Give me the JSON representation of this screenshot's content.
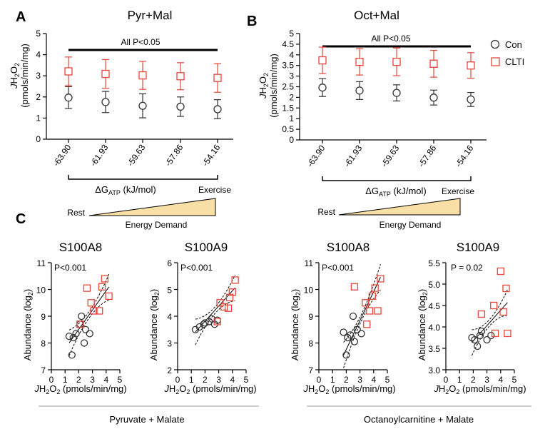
{
  "colors": {
    "con": "#333333",
    "clti": "#e8463b",
    "wedge": "#f8dfa5"
  },
  "panels": {
    "A": "A",
    "B": "B",
    "C": "C"
  },
  "top_charts": [
    {
      "title": "Pyr+Mal",
      "significance": "All P<0.05",
      "ylabel_main": "JH",
      "ylabel_sub": "2",
      "ylabel_o": "O",
      "ylabel_sub2": "2",
      "ylabel_units": "(pmols/min/mg)",
      "ylim": [
        0,
        5
      ],
      "yticks": [
        "0",
        "1",
        "2",
        "3",
        "4",
        "5"
      ],
      "categories": [
        "-63.90",
        "-61.93",
        "-59.63",
        "-57.86",
        "-54.16"
      ],
      "series": [
        {
          "name": "Con",
          "values": [
            1.97,
            1.76,
            1.58,
            1.54,
            1.42
          ],
          "errors": [
            0.52,
            0.5,
            0.57,
            0.46,
            0.45
          ]
        },
        {
          "name": "CLTI",
          "values": [
            3.21,
            3.09,
            3.02,
            2.98,
            2.9
          ],
          "errors": [
            0.68,
            0.68,
            0.66,
            0.64,
            0.68
          ]
        }
      ]
    },
    {
      "title": "Oct+Mal",
      "significance": "All P<0.05",
      "ylabel_main": "JH",
      "ylabel_sub": "2",
      "ylabel_o": "O",
      "ylabel_sub2": "2",
      "ylabel_units": "(pmols/min/mg)",
      "ylim": [
        0,
        5
      ],
      "yticks": [
        "0",
        "0.5",
        "1",
        "1.5",
        "2",
        "2.5",
        "3",
        "3.5",
        "4",
        "4.5",
        "5"
      ],
      "categories": [
        "-63.90",
        "-61.93",
        "-59.63",
        "-57.86",
        "-54.16"
      ],
      "series": [
        {
          "name": "Con",
          "values": [
            2.46,
            2.32,
            2.21,
            1.99,
            1.9
          ],
          "errors": [
            0.42,
            0.42,
            0.38,
            0.35,
            0.33
          ]
        },
        {
          "name": "CLTI",
          "values": [
            3.74,
            3.67,
            3.67,
            3.58,
            3.5
          ],
          "errors": [
            0.62,
            0.62,
            0.65,
            0.63,
            0.6
          ]
        }
      ]
    }
  ],
  "legend": {
    "items": [
      "Con",
      "CLTI"
    ]
  },
  "delta_g": {
    "label": "ΔG",
    "sub": "ATP",
    "units": " (kJ/mol)",
    "exercise": "Exercise",
    "rest": "Rest",
    "energy": "Energy Demand"
  },
  "scatter_charts": [
    {
      "title": "S100A8",
      "pvalue": "P<0.001",
      "ylim": [
        7,
        11
      ],
      "yticks": [
        "7",
        "8",
        "9",
        "10",
        "11"
      ],
      "xlim": [
        0,
        5
      ],
      "xticks": [
        "0",
        "1",
        "2",
        "3",
        "4",
        "5"
      ],
      "con": [
        [
          1.5,
          7.55
        ],
        [
          1.3,
          8.25
        ],
        [
          1.6,
          8.2
        ],
        [
          1.8,
          8.35
        ],
        [
          2.1,
          8.7
        ],
        [
          2.2,
          9.0
        ],
        [
          2.4,
          8.0
        ],
        [
          2.5,
          8.5
        ],
        [
          2.8,
          8.35
        ]
      ],
      "clti": [
        [
          2.1,
          8.7
        ],
        [
          2.6,
          10.05
        ],
        [
          2.9,
          9.5
        ],
        [
          3.1,
          9.2
        ],
        [
          3.5,
          9.2
        ],
        [
          3.7,
          10.1
        ],
        [
          3.9,
          10.4
        ],
        [
          4.2,
          9.75
        ]
      ],
      "fit": {
        "intercept": 7.07,
        "slope": 0.72
      }
    },
    {
      "title": "S100A9",
      "pvalue": "P<0.001",
      "ylim": [
        2,
        6
      ],
      "yticks": [
        "2",
        "3",
        "4",
        "5",
        "6"
      ],
      "xlim": [
        0,
        5
      ],
      "xticks": [
        "0",
        "1",
        "2",
        "3",
        "4",
        "5"
      ],
      "con": [
        [
          1.3,
          3.5
        ],
        [
          1.6,
          3.6
        ],
        [
          1.9,
          3.7
        ],
        [
          2.0,
          3.75
        ],
        [
          2.3,
          3.8
        ],
        [
          2.5,
          3.9
        ],
        [
          2.7,
          3.7
        ],
        [
          2.9,
          3.85
        ]
      ],
      "clti": [
        [
          2.9,
          3.8
        ],
        [
          3.1,
          4.5
        ],
        [
          3.4,
          4.35
        ],
        [
          3.7,
          4.3
        ],
        [
          3.8,
          4.7
        ],
        [
          4.0,
          4.9
        ],
        [
          4.2,
          5.35
        ]
      ],
      "fit": {
        "intercept": 2.67,
        "slope": 0.57
      }
    },
    {
      "title": "S100A8",
      "pvalue": "P<0.001",
      "ylim": [
        7,
        11
      ],
      "yticks": [
        "7",
        "8",
        "9",
        "10",
        "11"
      ],
      "xlim": [
        0,
        5
      ],
      "xticks": [
        "0",
        "1",
        "2",
        "3",
        "4",
        "5"
      ],
      "con": [
        [
          2.0,
          7.55
        ],
        [
          1.8,
          8.4
        ],
        [
          2.1,
          8.2
        ],
        [
          2.3,
          8.3
        ],
        [
          2.5,
          9.0
        ],
        [
          2.6,
          8.05
        ],
        [
          2.8,
          8.5
        ],
        [
          3.1,
          8.35
        ]
      ],
      "clti": [
        [
          2.6,
          10.1
        ],
        [
          3.4,
          9.5
        ],
        [
          3.5,
          8.7
        ],
        [
          3.7,
          9.2
        ],
        [
          3.9,
          9.75
        ],
        [
          4.1,
          10.05
        ],
        [
          4.3,
          9.2
        ],
        [
          4.5,
          10.4
        ]
      ],
      "fit": {
        "intercept": 5.6,
        "slope": 1.08
      }
    },
    {
      "title": "S100A9",
      "pvalue": "P = 0.02",
      "ylim": [
        3.0,
        5.5
      ],
      "yticks": [
        "3.0",
        "3.5",
        "4.0",
        "4.5",
        "5.0",
        "5.5"
      ],
      "xlim": [
        0,
        5
      ],
      "xticks": [
        "0",
        "1",
        "2",
        "3",
        "4",
        "5"
      ],
      "con": [
        [
          1.9,
          3.75
        ],
        [
          2.1,
          3.7
        ],
        [
          2.3,
          3.55
        ],
        [
          2.5,
          3.8
        ],
        [
          2.6,
          3.9
        ],
        [
          3.0,
          3.7
        ],
        [
          3.3,
          3.8
        ]
      ],
      "clti": [
        [
          2.6,
          4.3
        ],
        [
          3.5,
          4.5
        ],
        [
          3.6,
          3.85
        ],
        [
          4.0,
          5.3
        ],
        [
          4.2,
          4.35
        ],
        [
          4.4,
          4.9
        ],
        [
          4.5,
          3.85
        ]
      ],
      "fit": {
        "intercept": 2.95,
        "slope": 0.36
      }
    }
  ],
  "scatter_ylabel": "Abundance (log",
  "scatter_ylabel_sub": "2",
  "scatter_xlabel": {
    "j": "JH",
    "s1": "2",
    "o": "O",
    "s2": "2",
    "units": " (pmols/min/mg)"
  },
  "group_labels": [
    "Pyruvate + Malate",
    "Octanoylcarnitine + Malate"
  ]
}
